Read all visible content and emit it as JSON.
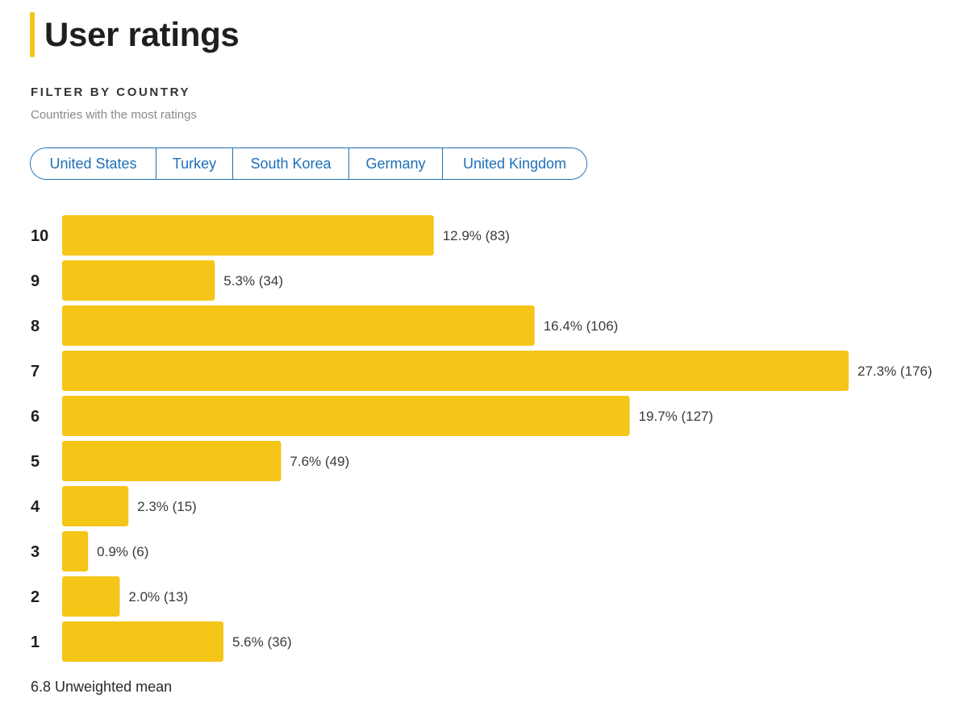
{
  "header": {
    "title": "User ratings",
    "accent_color": "#f5c518"
  },
  "filter": {
    "heading": "FILTER BY COUNTRY",
    "subheading": "Countries with the most ratings",
    "countries": [
      "United States",
      "Turkey",
      "South Korea",
      "Germany",
      "United Kingdom"
    ],
    "accent_color": "#1d6fb8"
  },
  "chart_data": {
    "type": "bar",
    "orientation": "horizontal",
    "categories": [
      "10",
      "9",
      "8",
      "7",
      "6",
      "5",
      "4",
      "3",
      "2",
      "1"
    ],
    "values": [
      12.9,
      5.3,
      16.4,
      27.3,
      19.7,
      7.6,
      2.3,
      0.9,
      2.0,
      5.6
    ],
    "counts": [
      83,
      34,
      106,
      176,
      127,
      49,
      15,
      6,
      13,
      36
    ],
    "data_labels": [
      "12.9% (83)",
      "5.3% (34)",
      "16.4% (106)",
      "27.3% (176)",
      "19.7% (127)",
      "7.6% (49)",
      "2.3% (15)",
      "0.9% (6)",
      "2.0% (13)",
      "5.6% (36)"
    ],
    "unit": "%",
    "bar_color": "#f5c518",
    "title": "",
    "xlabel": "",
    "ylabel": "",
    "grid": false,
    "legend": false
  },
  "summary": {
    "mean_label": "6.8 Unweighted mean"
  }
}
